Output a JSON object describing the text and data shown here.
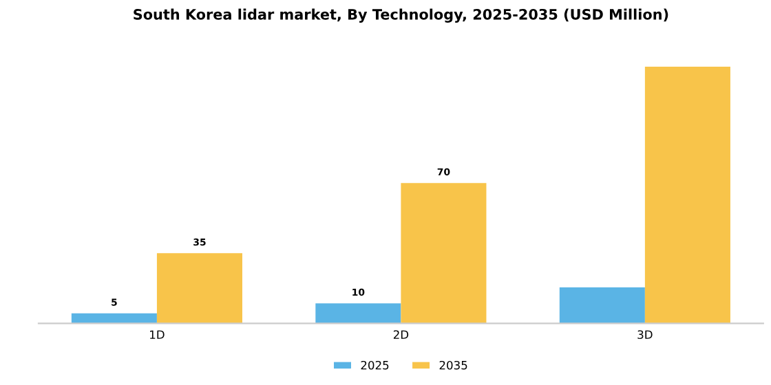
{
  "chart_data": {
    "type": "bar",
    "title": "South Korea lidar market, By Technology, 2025-2035 (USD Million)",
    "categories": [
      "1D",
      "2D",
      "3D"
    ],
    "series": [
      {
        "name": "2025",
        "color": "#5ab4e5",
        "values": [
          5,
          10,
          18
        ],
        "value_labels": [
          "5",
          "10",
          null
        ]
      },
      {
        "name": "2035",
        "color": "#f8c44a",
        "values": [
          35,
          70,
          128
        ],
        "value_labels": [
          "35",
          "70",
          null
        ]
      }
    ],
    "legend": "bottom",
    "grid": false,
    "tick_labels": "x"
  }
}
